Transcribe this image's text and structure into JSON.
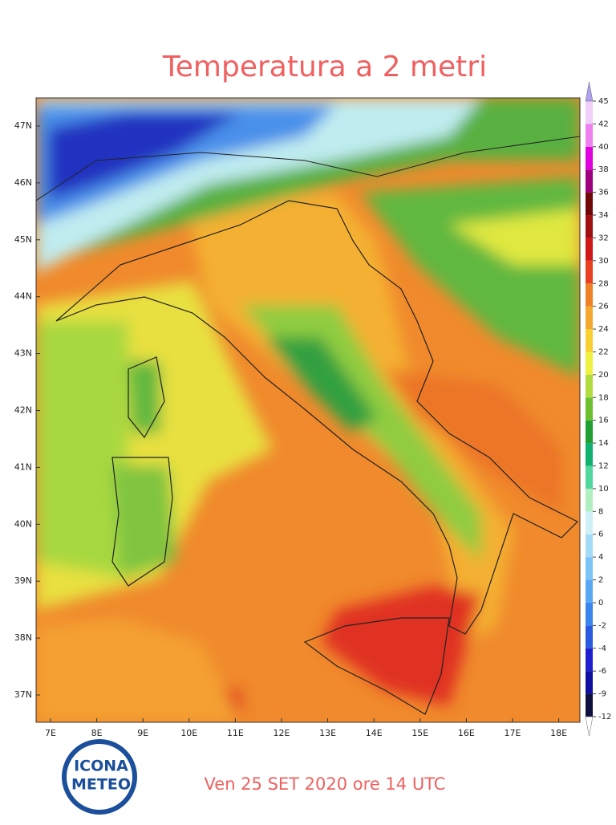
{
  "title": "Temperatura a 2 metri",
  "map": {
    "lat_labels": [
      "47N",
      "46N",
      "45N",
      "44N",
      "43N",
      "42N",
      "41N",
      "40N",
      "39N",
      "38N",
      "37N"
    ],
    "lon_labels": [
      "7E",
      "8E",
      "9E",
      "10E",
      "11E",
      "12E",
      "13E",
      "14E",
      "15E",
      "16E",
      "17E",
      "18E"
    ]
  },
  "colorbar": {
    "levels": [
      -12,
      -9,
      -6,
      -4,
      -2,
      0,
      2,
      4,
      6,
      8,
      10,
      12,
      14,
      16,
      18,
      20,
      22,
      24,
      26,
      28,
      30,
      32,
      34,
      36,
      38,
      40,
      42,
      45
    ],
    "colors": [
      "#101040",
      "#1010a0",
      "#2020d0",
      "#2a5ae0",
      "#3a86ee",
      "#58a8f4",
      "#7cc4f8",
      "#a4dcf8",
      "#d0f0f8",
      "#b0f0c0",
      "#50d8a0",
      "#10b070",
      "#20a030",
      "#6cc030",
      "#b0dc40",
      "#f0f040",
      "#f8d030",
      "#f4a830",
      "#f08028",
      "#e84020",
      "#d01818",
      "#a01010",
      "#700808",
      "#a00080",
      "#e000e0",
      "#f080f0",
      "#f0d0f8"
    ]
  },
  "logo": {
    "line1": "ICONA",
    "line2": "METEO"
  },
  "footer": "Ven 25 SET 2020 ore 14 UTC"
}
